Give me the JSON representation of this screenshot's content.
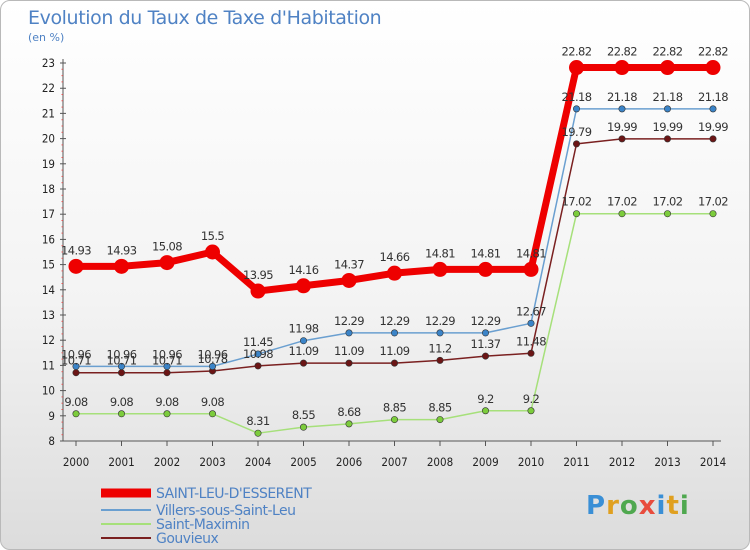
{
  "title": "Evolution du Taux de Taxe d'Habitation",
  "unit_label": "(en %)",
  "logo": {
    "parts": [
      "P",
      "r",
      "o",
      "x",
      "i",
      "t",
      "i"
    ],
    "colors": [
      "#3a8fd6",
      "#e0a020",
      "#4fa84f",
      "#e84c3d",
      "#3a8fd6",
      "#e0a020",
      "#4fa84f"
    ]
  },
  "chart_data": {
    "type": "line",
    "title": "Evolution du Taux de Taxe d'Habitation",
    "ylabel": "(en %)",
    "xlabel": "",
    "x": [
      "2000",
      "2001",
      "2002",
      "2003",
      "2004",
      "2005",
      "2006",
      "2007",
      "2008",
      "2009",
      "2010",
      "2011",
      "2012",
      "2013",
      "2014"
    ],
    "ylim": [
      8,
      23
    ],
    "yticks": [
      "8",
      "9",
      "10",
      "11",
      "12",
      "13",
      "14",
      "15",
      "16",
      "17",
      "18",
      "19",
      "20",
      "21",
      "22",
      "23"
    ],
    "grid": false,
    "legend_position": "bottom-left",
    "series": [
      {
        "name": "SAINT-LEU-D'ESSERENT",
        "color": "#ee0000",
        "marker": "#ee0000",
        "width": 7,
        "markerSize": 7.5,
        "values": [
          14.93,
          14.93,
          15.08,
          15.5,
          13.95,
          14.16,
          14.37,
          14.66,
          14.81,
          14.81,
          14.81,
          22.82,
          22.82,
          22.82,
          22.82
        ],
        "labels": [
          "14.93",
          "14.93",
          "15.08",
          "15.5",
          "13.95",
          "14.16",
          "14.37",
          "14.66",
          "14.81",
          "14.81",
          "14.81",
          "22.82",
          "22.82",
          "22.82",
          "22.82"
        ]
      },
      {
        "name": "Villers-sous-Saint-Leu",
        "color": "#6a9fd0",
        "marker": "#3b84c8",
        "width": 1.5,
        "markerSize": 3.2,
        "values": [
          10.96,
          10.96,
          10.96,
          10.96,
          11.45,
          11.98,
          12.29,
          12.29,
          12.29,
          12.29,
          12.67,
          21.18,
          21.18,
          21.18,
          21.18
        ],
        "labels": [
          "10.96",
          "10.96",
          "10.96",
          "10.96",
          "11.45",
          "11.98",
          "12.29",
          "12.29",
          "12.29",
          "12.29",
          "12.67",
          "21.18",
          "21.18",
          "21.18",
          "21.18"
        ]
      },
      {
        "name": "Saint-Maximin",
        "color": "#a6e07a",
        "marker": "#7ccc3c",
        "width": 1.5,
        "markerSize": 3.2,
        "values": [
          9.08,
          9.08,
          9.08,
          9.08,
          8.31,
          8.55,
          8.68,
          8.85,
          8.85,
          9.2,
          9.2,
          17.02,
          17.02,
          17.02,
          17.02
        ],
        "labels": [
          "9.08",
          "9.08",
          "9.08",
          "9.08",
          "8.31",
          "8.55",
          "8.68",
          "8.85",
          "8.85",
          "9.2",
          "9.2",
          "17.02",
          "17.02",
          "17.02",
          "17.02"
        ]
      },
      {
        "name": "Gouvieux",
        "color": "#7a2020",
        "marker": "#6b1515",
        "width": 1.5,
        "markerSize": 3.2,
        "values": [
          10.71,
          10.71,
          10.71,
          10.78,
          10.98,
          11.09,
          11.09,
          11.09,
          11.2,
          11.37,
          11.48,
          19.79,
          19.99,
          19.99,
          19.99
        ],
        "labels": [
          "10.71",
          "10.71",
          "10.71",
          "10.78",
          "10.98",
          "11.09",
          "11.09",
          "11.09",
          "11.2",
          "11.37",
          "11.48",
          "19.79",
          "19.99",
          "19.99",
          "19.99"
        ]
      }
    ]
  }
}
